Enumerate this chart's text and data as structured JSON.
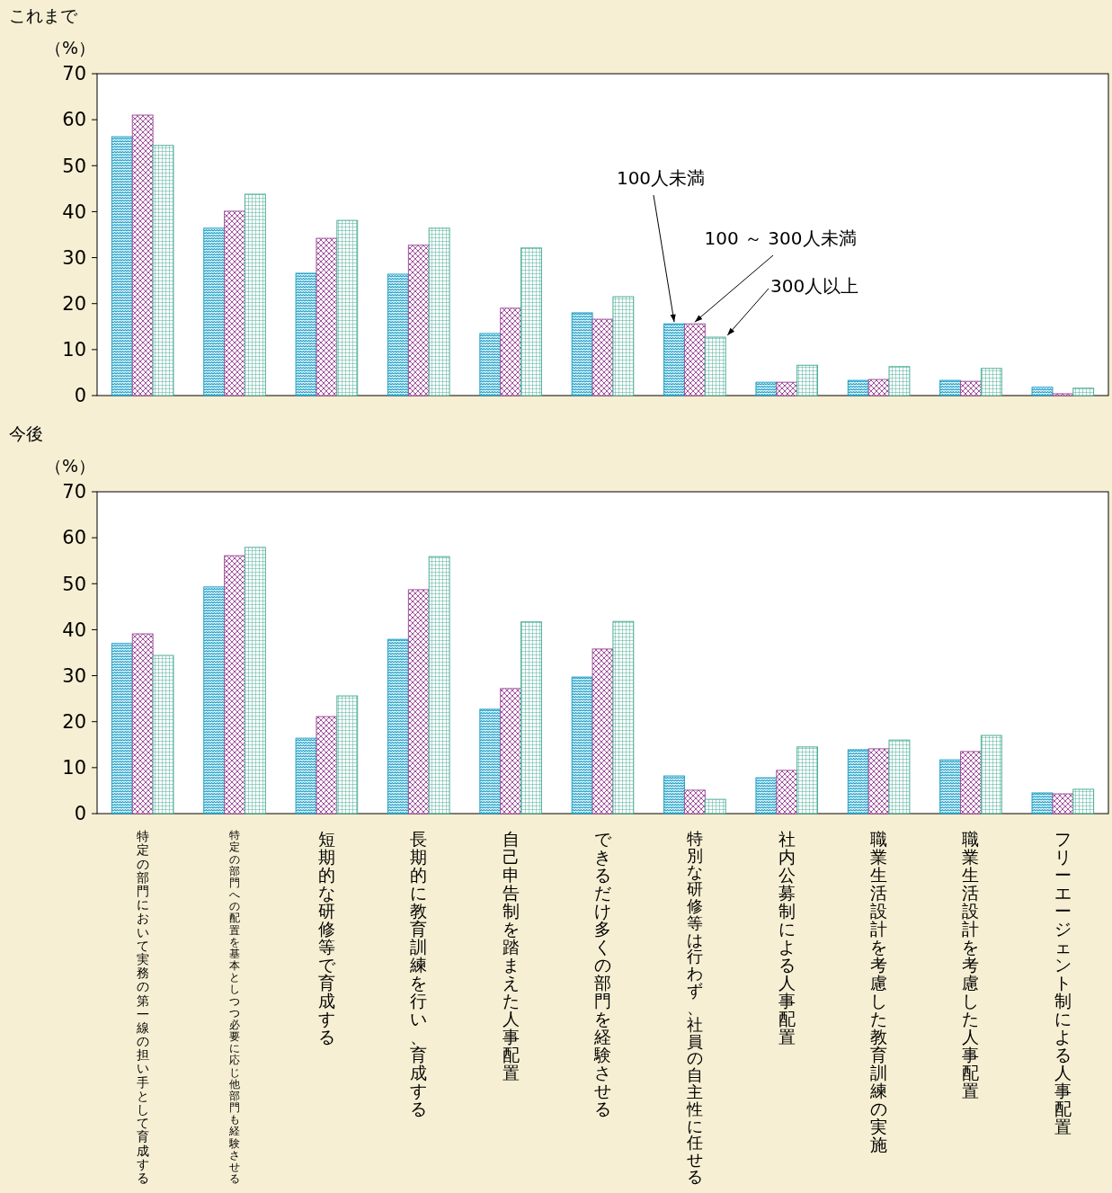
{
  "chart_data": [
    {
      "type": "bar",
      "title": "これまで",
      "ylabel": "（%）",
      "categories": [
        null,
        null,
        null,
        null,
        null,
        null,
        null,
        null,
        null,
        null,
        null
      ],
      "ylim": [
        0,
        70
      ],
      "yticks": [
        0,
        10,
        20,
        30,
        40,
        50,
        60,
        70
      ],
      "grid": false,
      "legend": false,
      "series": [
        {
          "name": "100人未満",
          "color": "#1ea0c8",
          "values": [
            56.3,
            36.4,
            26.6,
            26.4,
            13.5,
            18.0,
            15.6,
            2.9,
            3.3,
            3.3,
            1.8
          ]
        },
        {
          "name": "100 ～ 300人未満",
          "color": "#a0509c",
          "values": [
            61.0,
            40.1,
            34.2,
            32.7,
            19.0,
            16.6,
            15.6,
            2.9,
            3.5,
            3.1,
            0.4
          ]
        },
        {
          "name": "300人以上",
          "color": "#4cae96",
          "values": [
            54.4,
            43.8,
            38.1,
            36.4,
            32.1,
            21.5,
            12.7,
            6.6,
            6.3,
            5.9,
            1.6
          ]
        }
      ]
    },
    {
      "type": "bar",
      "title": "今後",
      "ylabel": "（%）",
      "categories": [
        "特定の部門において実務の第一線の担い手として育成する",
        "特定の部門への配置を基本としつつ必要に応じ他部門も経験させる",
        "短期的な研修等で育成する",
        "長期的に教育訓練を行い、育成する",
        "自己申告制を踏まえた人事配置",
        "できるだけ多くの部門を経験させる",
        "特別な研修等は行わず、社員の自主性に任せる",
        "社内公募制による人事配置",
        "職業生活設計を考慮した教育訓練の実施",
        "職業生活設計を考慮した人事配置",
        "フリーエージェント制による人事配置"
      ],
      "ylim": [
        0,
        70
      ],
      "yticks": [
        0,
        10,
        20,
        30,
        40,
        50,
        60,
        70
      ],
      "grid": false,
      "legend": false,
      "series": [
        {
          "color": "#1ea0c8",
          "values": [
            37.0,
            49.3,
            16.4,
            37.9,
            22.7,
            29.7,
            8.2,
            7.8,
            13.9,
            11.7,
            4.5
          ]
        },
        {
          "color": "#a0509c",
          "values": [
            39.1,
            56.1,
            21.1,
            48.7,
            27.2,
            35.8,
            5.1,
            9.4,
            14.1,
            13.5,
            4.3
          ]
        },
        {
          "color": "#4cae96",
          "values": [
            34.4,
            57.9,
            25.6,
            55.9,
            41.7,
            41.8,
            3.1,
            14.5,
            16.0,
            17.0,
            5.3
          ]
        }
      ]
    }
  ]
}
